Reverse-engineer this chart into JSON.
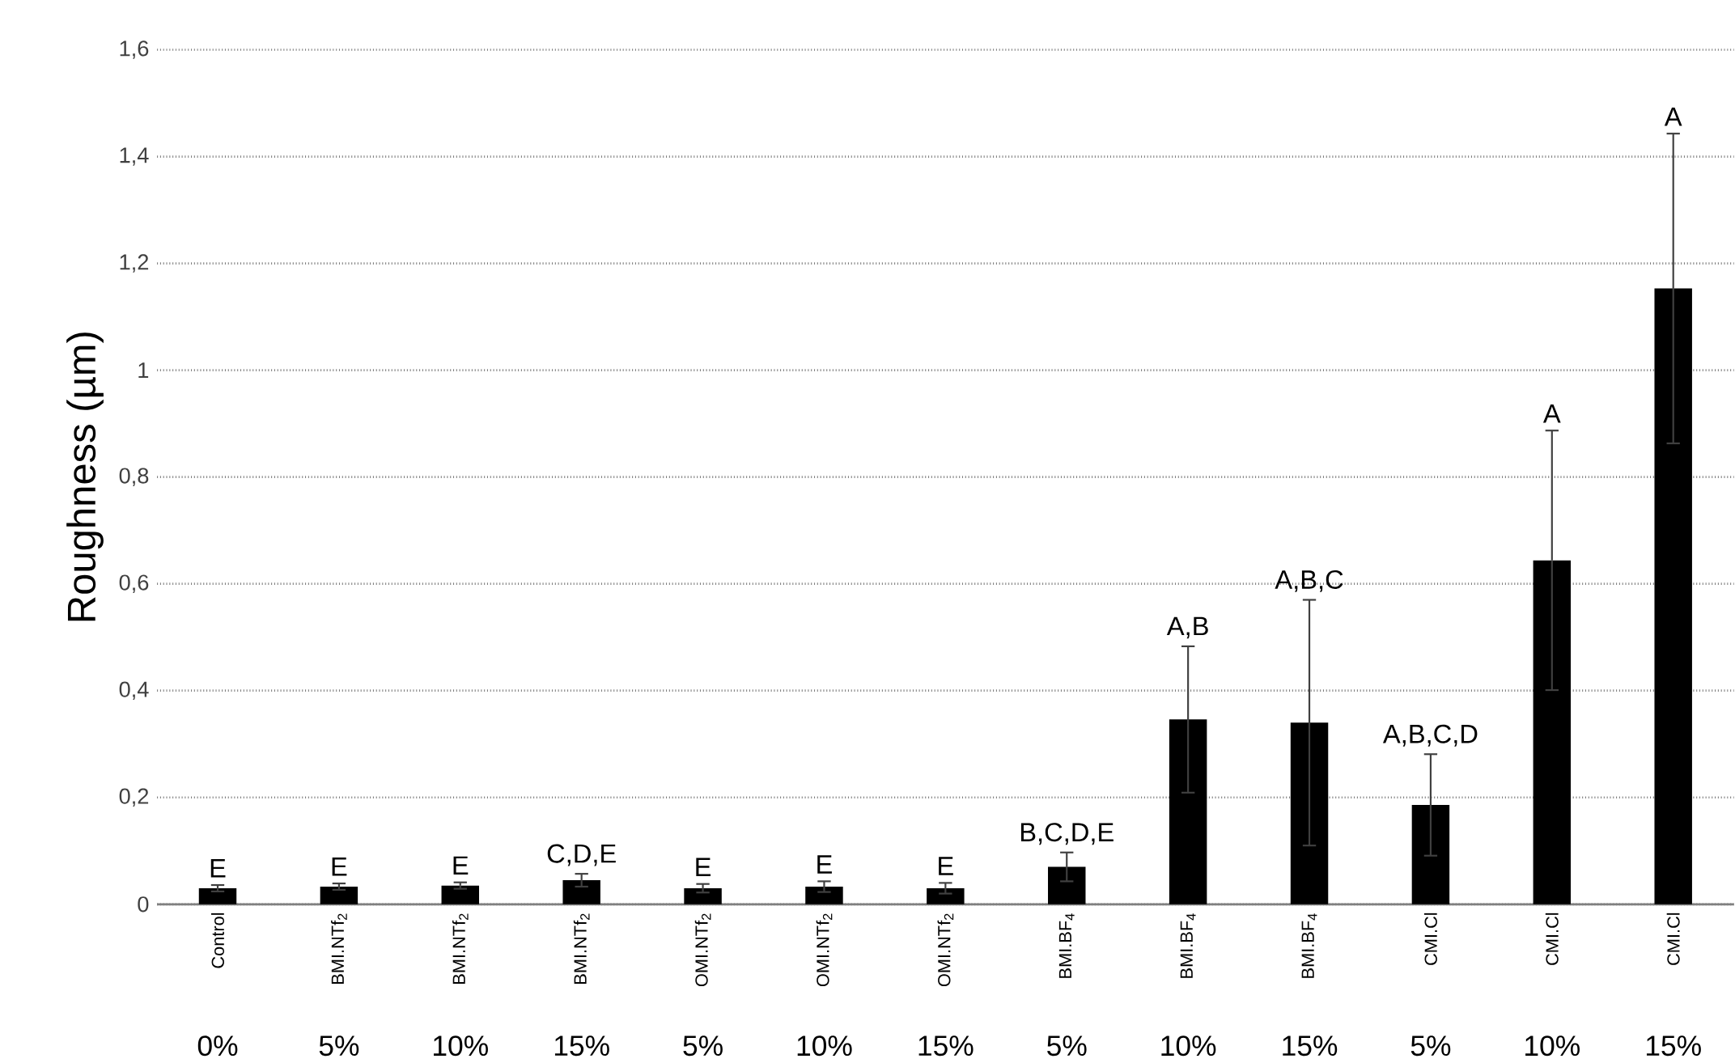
{
  "chart_data": {
    "type": "bar",
    "ylabel": "Roughness (µm)",
    "categories": [
      "Control",
      "BMI.NTf$_{2}$",
      "BMI.NTf$_{2}$",
      "BMI.NTf$_{2}$",
      "OMI.NTf$_{2}$",
      "OMI.NTf$_{2}$",
      "OMI.NTf$_{2}$",
      "BMI.BF$_{4}$",
      "BMI.BF$_{4}$",
      "BMI.BF$_{4}$",
      "CMI.Cl",
      "CMI.Cl",
      "CMI.Cl"
    ],
    "values": [
      0.03,
      0.033,
      0.035,
      0.045,
      0.03,
      0.033,
      0.03,
      0.07,
      0.346,
      0.34,
      0.186,
      0.644,
      1.153
    ],
    "errors": [
      0.006,
      0.006,
      0.006,
      0.012,
      0.008,
      0.01,
      0.01,
      0.027,
      0.137,
      0.23,
      0.095,
      0.243,
      0.29
    ],
    "annotations": [
      {
        "text": "E",
        "y": 0.036
      },
      {
        "text": "E",
        "y": 0.039
      },
      {
        "text": "E",
        "y": 0.041
      },
      {
        "text": "C,D,E",
        "y": 0.057
      },
      {
        "text": "E",
        "y": 0.038
      },
      {
        "text": "E",
        "y": 0.043
      },
      {
        "text": "E",
        "y": 0.04
      },
      {
        "text": "B,C,D,E",
        "y": 0.097
      },
      {
        "text": "A,B",
        "y": 0.483
      },
      {
        "text": "A,B,C",
        "y": 0.57
      },
      {
        "text": "A,B,C,D",
        "y": 0.281
      },
      {
        "text": "A",
        "y": 0.887
      },
      {
        "text": "A",
        "y": 1.443
      },
      "0%",
      "5%",
      "10%",
      "15%",
      "5%",
      "10%",
      "15%",
      "5%",
      "10%",
      "15%",
      "5%",
      "10%",
      "15%"
    ],
    "color": "#000000",
    "ylim": [
      0,
      1.6
    ],
    "yticks": [
      0,
      {
        "value": 0.2,
        "label": "0,2"
      },
      {
        "value": 0.4,
        "label": "0,4"
      },
      {
        "value": 0.6,
        "label": "0,6"
      },
      {
        "value": 0.8,
        "label": "0,8"
      },
      1,
      {
        "value": 1.2,
        "label": "1,2"
      },
      {
        "value": 1.4,
        "label": "1,4"
      },
      {
        "value": 1.6,
        "label": "1,6"
      }
    ],
    "grid": "y"
  }
}
